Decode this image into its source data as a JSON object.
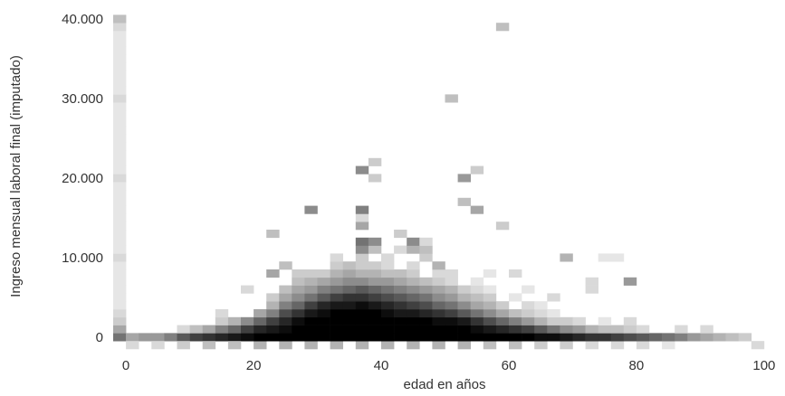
{
  "chart_data": {
    "type": "heatmap",
    "title": "",
    "xlabel": "edad en años",
    "ylabel": "Ingreso mensual laboral final (imputado)",
    "xlim": [
      -2,
      102
    ],
    "ylim": [
      -1500,
      41000
    ],
    "x_ticks": [
      0,
      20,
      40,
      60,
      80,
      100
    ],
    "x_tick_labels": [
      "0",
      "20",
      "40",
      "60",
      "80",
      "100"
    ],
    "y_ticks": [
      0,
      10000,
      20000,
      30000,
      40000
    ],
    "y_tick_labels": [
      "0",
      "10.000",
      "20.000",
      "30.000",
      "40.000"
    ],
    "bin_width_x": 2,
    "bin_width_y": 1000,
    "color_scale": [
      "#ffffff",
      "#000000"
    ],
    "grid": false,
    "legend": "none",
    "cells": [
      [
        -1,
        0,
        0.55
      ],
      [
        -1,
        1000,
        0.35
      ],
      [
        -1,
        2000,
        0.2
      ],
      [
        -1,
        3000,
        0.15
      ],
      [
        -1,
        4000,
        0.1
      ],
      [
        -1,
        5000,
        0.1
      ],
      [
        -1,
        6000,
        0.1
      ],
      [
        -1,
        7000,
        0.1
      ],
      [
        -1,
        8000,
        0.1
      ],
      [
        -1,
        9000,
        0.1
      ],
      [
        -1,
        10000,
        0.15
      ],
      [
        -1,
        11000,
        0.1
      ],
      [
        -1,
        12000,
        0.1
      ],
      [
        -1,
        13000,
        0.1
      ],
      [
        -1,
        14000,
        0.1
      ],
      [
        -1,
        15000,
        0.1
      ],
      [
        -1,
        16000,
        0.1
      ],
      [
        -1,
        17000,
        0.1
      ],
      [
        -1,
        18000,
        0.1
      ],
      [
        -1,
        19000,
        0.1
      ],
      [
        -1,
        20000,
        0.15
      ],
      [
        -1,
        21000,
        0.1
      ],
      [
        -1,
        22000,
        0.1
      ],
      [
        -1,
        23000,
        0.1
      ],
      [
        -1,
        24000,
        0.1
      ],
      [
        -1,
        25000,
        0.1
      ],
      [
        -1,
        26000,
        0.1
      ],
      [
        -1,
        27000,
        0.1
      ],
      [
        -1,
        28000,
        0.1
      ],
      [
        -1,
        29000,
        0.1
      ],
      [
        -1,
        30000,
        0.15
      ],
      [
        -1,
        31000,
        0.1
      ],
      [
        -1,
        32000,
        0.1
      ],
      [
        -1,
        33000,
        0.1
      ],
      [
        -1,
        34000,
        0.1
      ],
      [
        -1,
        35000,
        0.1
      ],
      [
        -1,
        36000,
        0.1
      ],
      [
        -1,
        37000,
        0.1
      ],
      [
        -1,
        38000,
        0.1
      ],
      [
        -1,
        39000,
        0.15
      ],
      [
        -1,
        40000,
        0.25
      ],
      [
        1,
        0,
        0.35
      ],
      [
        3,
        0,
        0.4
      ],
      [
        5,
        0,
        0.4
      ],
      [
        7,
        0,
        0.5
      ],
      [
        9,
        0,
        0.65
      ],
      [
        11,
        0,
        0.75
      ],
      [
        13,
        0,
        0.8
      ],
      [
        15,
        0,
        0.85
      ],
      [
        17,
        0,
        0.9
      ],
      [
        19,
        0,
        0.95
      ],
      [
        1,
        -1000,
        0.15
      ],
      [
        5,
        -1000,
        0.15
      ],
      [
        9,
        -1000,
        0.2
      ],
      [
        13,
        -1000,
        0.25
      ],
      [
        17,
        -1000,
        0.25
      ],
      [
        21,
        -1000,
        0.3
      ],
      [
        25,
        -1000,
        0.3
      ],
      [
        29,
        -1000,
        0.3
      ],
      [
        33,
        -1000,
        0.3
      ],
      [
        37,
        -1000,
        0.3
      ],
      [
        41,
        -1000,
        0.3
      ],
      [
        45,
        -1000,
        0.3
      ],
      [
        49,
        -1000,
        0.3
      ],
      [
        53,
        -1000,
        0.3
      ],
      [
        57,
        -1000,
        0.25
      ],
      [
        61,
        -1000,
        0.25
      ],
      [
        65,
        -1000,
        0.2
      ],
      [
        69,
        -1000,
        0.2
      ],
      [
        73,
        -1000,
        0.15
      ],
      [
        77,
        -1000,
        0.15
      ],
      [
        81,
        -1000,
        0.15
      ],
      [
        85,
        -1000,
        0.1
      ],
      [
        9,
        1000,
        0.15
      ],
      [
        11,
        1000,
        0.25
      ],
      [
        13,
        1000,
        0.35
      ],
      [
        15,
        1000,
        0.5
      ],
      [
        17,
        1000,
        0.6
      ],
      [
        19,
        1000,
        0.75
      ],
      [
        15,
        2000,
        0.2
      ],
      [
        17,
        2000,
        0.3
      ],
      [
        19,
        2000,
        0.45
      ],
      [
        15,
        3000,
        0.15
      ],
      [
        21,
        0,
        1
      ],
      [
        23,
        0,
        1
      ],
      [
        25,
        0,
        1
      ],
      [
        27,
        0,
        1
      ],
      [
        29,
        0,
        1
      ],
      [
        31,
        0,
        1
      ],
      [
        33,
        0,
        1
      ],
      [
        35,
        0,
        1
      ],
      [
        37,
        0,
        1
      ],
      [
        39,
        0,
        1
      ],
      [
        41,
        0,
        1
      ],
      [
        43,
        0,
        1
      ],
      [
        45,
        0,
        1
      ],
      [
        47,
        0,
        1
      ],
      [
        49,
        0,
        1
      ],
      [
        51,
        0,
        1
      ],
      [
        53,
        0,
        1
      ],
      [
        55,
        0,
        1
      ],
      [
        57,
        0,
        1
      ],
      [
        59,
        0,
        1
      ],
      [
        61,
        0,
        1
      ],
      [
        63,
        0,
        1
      ],
      [
        65,
        0,
        0.95
      ],
      [
        67,
        0,
        0.95
      ],
      [
        69,
        0,
        0.9
      ],
      [
        71,
        0,
        0.85
      ],
      [
        73,
        0,
        0.8
      ],
      [
        75,
        0,
        0.8
      ],
      [
        77,
        0,
        0.75
      ],
      [
        79,
        0,
        0.7
      ],
      [
        81,
        0,
        0.65
      ],
      [
        83,
        0,
        0.6
      ],
      [
        85,
        0,
        0.55
      ],
      [
        87,
        0,
        0.5
      ],
      [
        89,
        0,
        0.4
      ],
      [
        91,
        0,
        0.35
      ],
      [
        93,
        0,
        0.3
      ],
      [
        95,
        0,
        0.25
      ],
      [
        97,
        0,
        0.2
      ],
      [
        99,
        -1000,
        0.15
      ],
      [
        21,
        1000,
        0.85
      ],
      [
        23,
        1000,
        0.9
      ],
      [
        25,
        1000,
        0.95
      ],
      [
        27,
        1000,
        1
      ],
      [
        29,
        1000,
        1
      ],
      [
        31,
        1000,
        1
      ],
      [
        33,
        1000,
        1
      ],
      [
        35,
        1000,
        1
      ],
      [
        37,
        1000,
        1
      ],
      [
        39,
        1000,
        1
      ],
      [
        41,
        1000,
        1
      ],
      [
        43,
        1000,
        1
      ],
      [
        45,
        1000,
        1
      ],
      [
        47,
        1000,
        1
      ],
      [
        49,
        1000,
        1
      ],
      [
        51,
        1000,
        1
      ],
      [
        53,
        1000,
        1
      ],
      [
        55,
        1000,
        0.95
      ],
      [
        57,
        1000,
        0.9
      ],
      [
        59,
        1000,
        0.85
      ],
      [
        61,
        1000,
        0.8
      ],
      [
        63,
        1000,
        0.75
      ],
      [
        65,
        1000,
        0.65
      ],
      [
        67,
        1000,
        0.55
      ],
      [
        69,
        1000,
        0.45
      ],
      [
        71,
        1000,
        0.4
      ],
      [
        73,
        1000,
        0.3
      ],
      [
        75,
        1000,
        0.25
      ],
      [
        77,
        1000,
        0.25
      ],
      [
        79,
        1000,
        0.2
      ],
      [
        81,
        1000,
        0.15
      ],
      [
        87,
        1000,
        0.15
      ],
      [
        91,
        1000,
        0.15
      ],
      [
        21,
        2000,
        0.6
      ],
      [
        23,
        2000,
        0.75
      ],
      [
        25,
        2000,
        0.85
      ],
      [
        27,
        2000,
        0.95
      ],
      [
        29,
        2000,
        1
      ],
      [
        31,
        2000,
        1
      ],
      [
        33,
        2000,
        1
      ],
      [
        35,
        2000,
        1
      ],
      [
        37,
        2000,
        1
      ],
      [
        39,
        2000,
        1
      ],
      [
        41,
        2000,
        1
      ],
      [
        43,
        2000,
        1
      ],
      [
        45,
        2000,
        1
      ],
      [
        47,
        2000,
        1
      ],
      [
        49,
        2000,
        0.95
      ],
      [
        51,
        2000,
        0.95
      ],
      [
        53,
        2000,
        0.9
      ],
      [
        55,
        2000,
        0.8
      ],
      [
        57,
        2000,
        0.7
      ],
      [
        59,
        2000,
        0.6
      ],
      [
        61,
        2000,
        0.5
      ],
      [
        63,
        2000,
        0.4
      ],
      [
        65,
        2000,
        0.3
      ],
      [
        67,
        2000,
        0.2
      ],
      [
        69,
        2000,
        0.2
      ],
      [
        71,
        2000,
        0.15
      ],
      [
        75,
        2000,
        0.1
      ],
      [
        79,
        2000,
        0.15
      ],
      [
        21,
        3000,
        0.35
      ],
      [
        23,
        3000,
        0.5
      ],
      [
        25,
        3000,
        0.7
      ],
      [
        27,
        3000,
        0.8
      ],
      [
        29,
        3000,
        0.9
      ],
      [
        31,
        3000,
        0.95
      ],
      [
        33,
        3000,
        1
      ],
      [
        35,
        3000,
        1
      ],
      [
        37,
        3000,
        1
      ],
      [
        39,
        3000,
        1
      ],
      [
        41,
        3000,
        0.95
      ],
      [
        43,
        3000,
        0.9
      ],
      [
        45,
        3000,
        0.9
      ],
      [
        47,
        3000,
        0.85
      ],
      [
        49,
        3000,
        0.8
      ],
      [
        51,
        3000,
        0.75
      ],
      [
        53,
        3000,
        0.65
      ],
      [
        55,
        3000,
        0.55
      ],
      [
        57,
        3000,
        0.45
      ],
      [
        59,
        3000,
        0.35
      ],
      [
        61,
        3000,
        0.25
      ],
      [
        63,
        3000,
        0.2
      ],
      [
        65,
        3000,
        0.15
      ],
      [
        67,
        3000,
        0.1
      ],
      [
        23,
        4000,
        0.3
      ],
      [
        25,
        4000,
        0.5
      ],
      [
        27,
        4000,
        0.6
      ],
      [
        29,
        4000,
        0.75
      ],
      [
        31,
        4000,
        0.85
      ],
      [
        33,
        4000,
        0.9
      ],
      [
        35,
        4000,
        0.9
      ],
      [
        37,
        4000,
        0.95
      ],
      [
        39,
        4000,
        0.9
      ],
      [
        41,
        4000,
        0.85
      ],
      [
        43,
        4000,
        0.8
      ],
      [
        45,
        4000,
        0.75
      ],
      [
        47,
        4000,
        0.7
      ],
      [
        49,
        4000,
        0.6
      ],
      [
        51,
        4000,
        0.55
      ],
      [
        53,
        4000,
        0.45
      ],
      [
        55,
        4000,
        0.35
      ],
      [
        57,
        4000,
        0.3
      ],
      [
        59,
        4000,
        0.2
      ],
      [
        63,
        4000,
        0.15
      ],
      [
        65,
        4000,
        0.1
      ],
      [
        23,
        5000,
        0.2
      ],
      [
        25,
        5000,
        0.35
      ],
      [
        27,
        5000,
        0.45
      ],
      [
        29,
        5000,
        0.55
      ],
      [
        31,
        5000,
        0.65
      ],
      [
        33,
        5000,
        0.75
      ],
      [
        35,
        5000,
        0.8
      ],
      [
        37,
        5000,
        0.8
      ],
      [
        39,
        5000,
        0.75
      ],
      [
        41,
        5000,
        0.7
      ],
      [
        43,
        5000,
        0.65
      ],
      [
        45,
        5000,
        0.6
      ],
      [
        47,
        5000,
        0.55
      ],
      [
        49,
        5000,
        0.45
      ],
      [
        51,
        5000,
        0.4
      ],
      [
        53,
        5000,
        0.3
      ],
      [
        55,
        5000,
        0.25
      ],
      [
        57,
        5000,
        0.2
      ],
      [
        61,
        5000,
        0.1
      ],
      [
        67,
        5000,
        0.15
      ],
      [
        19,
        6000,
        0.15
      ],
      [
        25,
        6000,
        0.25
      ],
      [
        27,
        6000,
        0.35
      ],
      [
        29,
        6000,
        0.4
      ],
      [
        31,
        6000,
        0.5
      ],
      [
        33,
        6000,
        0.55
      ],
      [
        35,
        6000,
        0.6
      ],
      [
        37,
        6000,
        0.65
      ],
      [
        39,
        6000,
        0.6
      ],
      [
        41,
        6000,
        0.55
      ],
      [
        43,
        6000,
        0.5
      ],
      [
        45,
        6000,
        0.45
      ],
      [
        47,
        6000,
        0.4
      ],
      [
        49,
        6000,
        0.35
      ],
      [
        51,
        6000,
        0.3
      ],
      [
        53,
        6000,
        0.2
      ],
      [
        55,
        6000,
        0.15
      ],
      [
        57,
        6000,
        0.1
      ],
      [
        63,
        6000,
        0.1
      ],
      [
        73,
        6000,
        0.15
      ],
      [
        27,
        7000,
        0.25
      ],
      [
        29,
        7000,
        0.3
      ],
      [
        31,
        7000,
        0.35
      ],
      [
        33,
        7000,
        0.4
      ],
      [
        35,
        7000,
        0.45
      ],
      [
        37,
        7000,
        0.45
      ],
      [
        39,
        7000,
        0.4
      ],
      [
        41,
        7000,
        0.4
      ],
      [
        43,
        7000,
        0.35
      ],
      [
        45,
        7000,
        0.3
      ],
      [
        47,
        7000,
        0.25
      ],
      [
        49,
        7000,
        0.2
      ],
      [
        51,
        7000,
        0.15
      ],
      [
        55,
        7000,
        0.1
      ],
      [
        73,
        7000,
        0.15
      ],
      [
        79,
        7000,
        0.4
      ],
      [
        23,
        8000,
        0.35
      ],
      [
        27,
        8000,
        0.2
      ],
      [
        29,
        8000,
        0.2
      ],
      [
        31,
        8000,
        0.2
      ],
      [
        33,
        8000,
        0.3
      ],
      [
        35,
        8000,
        0.35
      ],
      [
        37,
        8000,
        0.3
      ],
      [
        39,
        8000,
        0.3
      ],
      [
        41,
        8000,
        0.25
      ],
      [
        43,
        8000,
        0.25
      ],
      [
        45,
        8000,
        0.2
      ],
      [
        49,
        8000,
        0.15
      ],
      [
        51,
        8000,
        0.15
      ],
      [
        57,
        8000,
        0.1
      ],
      [
        61,
        8000,
        0.15
      ],
      [
        25,
        9000,
        0.25
      ],
      [
        33,
        9000,
        0.2
      ],
      [
        35,
        9000,
        0.25
      ],
      [
        37,
        9000,
        0.2
      ],
      [
        39,
        9000,
        0.2
      ],
      [
        41,
        9000,
        0.15
      ],
      [
        45,
        9000,
        0.15
      ],
      [
        49,
        9000,
        0.3
      ],
      [
        33,
        10000,
        0.15
      ],
      [
        37,
        10000,
        0.2
      ],
      [
        41,
        10000,
        0.15
      ],
      [
        47,
        10000,
        0.2
      ],
      [
        69,
        10000,
        0.3
      ],
      [
        75,
        10000,
        0.1
      ],
      [
        77,
        10000,
        0.1
      ],
      [
        37,
        11000,
        0.45
      ],
      [
        39,
        11000,
        0.25
      ],
      [
        43,
        11000,
        0.15
      ],
      [
        45,
        11000,
        0.3
      ],
      [
        47,
        11000,
        0.25
      ],
      [
        37,
        12000,
        0.55
      ],
      [
        39,
        12000,
        0.45
      ],
      [
        45,
        12000,
        0.45
      ],
      [
        47,
        12000,
        0.15
      ],
      [
        23,
        13000,
        0.25
      ],
      [
        43,
        13000,
        0.2
      ],
      [
        37,
        14000,
        0.35
      ],
      [
        59,
        14000,
        0.2
      ],
      [
        37,
        15000,
        0.15
      ],
      [
        29,
        16000,
        0.45
      ],
      [
        37,
        16000,
        0.5
      ],
      [
        55,
        16000,
        0.35
      ],
      [
        53,
        17000,
        0.25
      ],
      [
        39,
        20000,
        0.2
      ],
      [
        53,
        20000,
        0.4
      ],
      [
        37,
        21000,
        0.45
      ],
      [
        55,
        21000,
        0.2
      ],
      [
        39,
        22000,
        0.2
      ],
      [
        51,
        30000,
        0.25
      ],
      [
        59,
        39000,
        0.25
      ]
    ]
  }
}
